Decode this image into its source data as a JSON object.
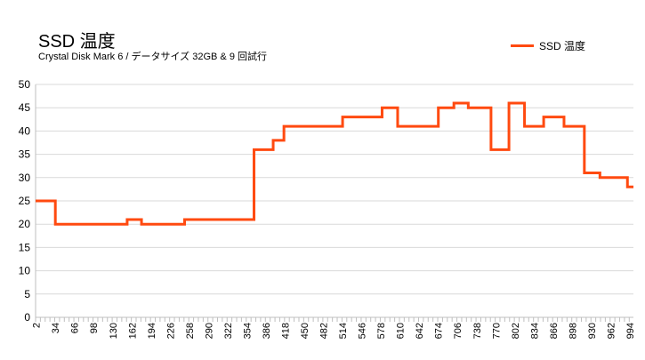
{
  "chart_data": {
    "type": "line",
    "title": "SSD 温度",
    "subtitle": "Crystal Disk Mark 6 /  データサイズ 32GB & 9 回試行",
    "legend": {
      "position": "top-right",
      "entries": [
        "SSD 温度"
      ]
    },
    "series": [
      {
        "name": "SSD 温度",
        "color": "#ff4a10",
        "steps": [
          [
            1,
            25
          ],
          [
            34,
            20
          ],
          [
            154,
            21
          ],
          [
            178,
            20
          ],
          [
            250,
            21
          ],
          [
            366,
            36
          ],
          [
            398,
            38
          ],
          [
            416,
            41
          ],
          [
            514,
            43
          ],
          [
            580,
            45
          ],
          [
            606,
            41
          ],
          [
            674,
            45
          ],
          [
            700,
            46
          ],
          [
            724,
            45
          ],
          [
            762,
            36
          ],
          [
            792,
            46
          ],
          [
            818,
            41
          ],
          [
            850,
            43
          ],
          [
            884,
            41
          ],
          [
            918,
            31
          ],
          [
            944,
            30
          ],
          [
            990,
            28
          ],
          [
            1000,
            28
          ]
        ]
      }
    ],
    "xlim": [
      1,
      1000
    ],
    "ylim": [
      0,
      50
    ],
    "y_ticks": [
      0,
      5,
      10,
      15,
      20,
      25,
      30,
      35,
      40,
      45,
      50
    ],
    "x_tick_labels": [
      2,
      34,
      66,
      98,
      130,
      162,
      194,
      226,
      258,
      290,
      322,
      354,
      386,
      418,
      450,
      482,
      514,
      546,
      578,
      610,
      642,
      674,
      706,
      738,
      770,
      802,
      834,
      866,
      898,
      930,
      962,
      994
    ],
    "grid": true
  }
}
